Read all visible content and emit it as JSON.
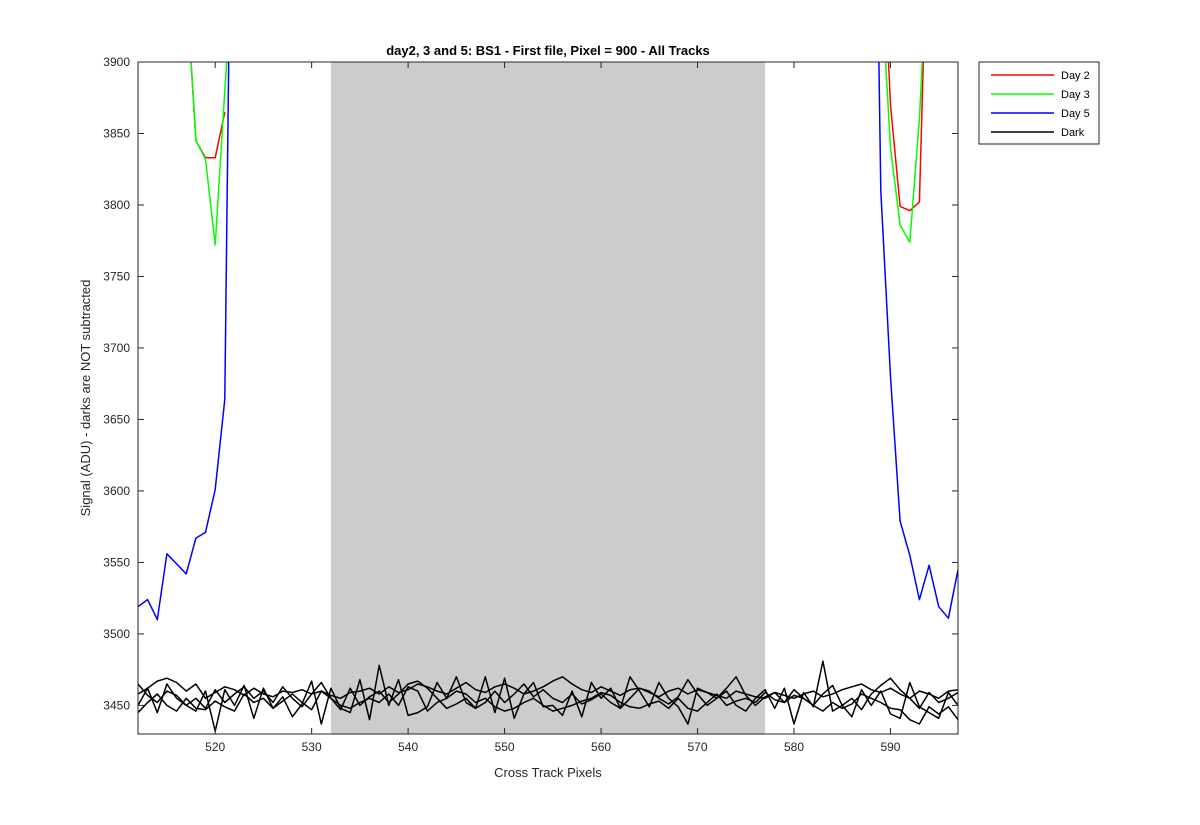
{
  "chart_data": {
    "type": "line",
    "title": "day2, 3 and 5: BS1 - First file, Pixel = 900 - All Tracks",
    "xlabel": "Cross Track Pixels",
    "ylabel": "Signal (ADU) - darks are NOT subtracted",
    "xlim": [
      512,
      597
    ],
    "ylim": [
      3430,
      3900
    ],
    "xticks": [
      520,
      530,
      540,
      550,
      560,
      570,
      580,
      590
    ],
    "yticks": [
      3450,
      3500,
      3550,
      3600,
      3650,
      3700,
      3750,
      3800,
      3850,
      3900
    ],
    "grid": false,
    "legend_position": "outside-top-right",
    "shaded_region": {
      "x_start": 532,
      "x_end": 577,
      "color": "#cccccc"
    },
    "series": [
      {
        "name": "Day 2",
        "color": "#ff0000",
        "segments": [
          {
            "x": [
              517.5,
              518,
              519,
              520,
              521
            ],
            "y": [
              3900,
              3845,
              3833,
              3833,
              3865
            ]
          },
          {
            "x": [
              589.8,
              590,
              591,
              592,
              593,
              593.4
            ],
            "y": [
              3900,
              3870,
              3799,
              3796,
              3802,
              3900
            ]
          }
        ]
      },
      {
        "name": "Day 3",
        "color": "#00ff00",
        "segments": [
          {
            "x": [
              517.5,
              518,
              519,
              520,
              521,
              521.2
            ],
            "y": [
              3900,
              3845,
              3832,
              3772,
              3880,
              3900
            ]
          },
          {
            "x": [
              589.5,
              590,
              591,
              592,
              593,
              593.3
            ],
            "y": [
              3900,
              3840,
              3786,
              3774,
              3860,
              3900
            ]
          }
        ]
      },
      {
        "name": "Day 5",
        "color": "#0000ff",
        "segments": [
          {
            "x": [
              512,
              513,
              514,
              515,
              516,
              517,
              518,
              519,
              520,
              521,
              521.4
            ],
            "y": [
              3519,
              3524,
              3510,
              3556,
              3549,
              3542,
              3567,
              3571,
              3601,
              3664,
              3900
            ]
          },
          {
            "x": [
              588.8,
              589,
              590,
              591,
              592,
              593,
              594,
              595,
              596,
              597
            ],
            "y": [
              3900,
              3810,
              3680,
              3579,
              3555,
              3524,
              3548,
              3519,
              3511,
              3545
            ]
          }
        ]
      },
      {
        "name": "Dark",
        "color": "#000000",
        "segments": [
          {
            "x": [
              512,
              513,
              514,
              515,
              516,
              517,
              518,
              519,
              520,
              521,
              522,
              523,
              524,
              525,
              526,
              527,
              528,
              529,
              530,
              531,
              532,
              533,
              534,
              535,
              536,
              537,
              538,
              539,
              540,
              541,
              542,
              543,
              544,
              545,
              546,
              547,
              548,
              549,
              550,
              551,
              552,
              553,
              554,
              555,
              556,
              557,
              558,
              559,
              560,
              561,
              562,
              563,
              564,
              565,
              566,
              567,
              568,
              569,
              570,
              571,
              572,
              573,
              574,
              575,
              576,
              577,
              578,
              579,
              580,
              581,
              582,
              583,
              584,
              585,
              586,
              587,
              588,
              589,
              590,
              591,
              592,
              593,
              594,
              595,
              596,
              597
            ],
            "y": [
              3458,
              3462,
              3467,
              3469,
              3466,
              3460,
              3465,
              3455,
              3459,
              3463,
              3461,
              3457,
              3462,
              3458,
              3456,
              3460,
              3459,
              3461,
              3458,
              3460,
              3457,
              3455,
              3459,
              3460,
              3462,
              3458,
              3463,
              3459,
              3461,
              3465,
              3463,
              3460,
              3458,
              3462,
              3466,
              3461,
              3459,
              3463,
              3465,
              3462,
              3458,
              3460,
              3463,
              3467,
              3470,
              3465,
              3461,
              3459,
              3463,
              3460,
              3457,
              3461,
              3462,
              3459,
              3456,
              3460,
              3462,
              3458,
              3461,
              3459,
              3457,
              3455,
              3460,
              3458,
              3456,
              3455,
              3459,
              3457,
              3455,
              3458,
              3460,
              3456,
              3458,
              3461,
              3463,
              3465,
              3461,
              3459,
              3462,
              3458,
              3455,
              3460,
              3458,
              3455,
              3460,
              3461
            ]
          },
          {
            "x": [
              512,
              513,
              514,
              515,
              516,
              517,
              518,
              519,
              520,
              521,
              522,
              523,
              524,
              525,
              526,
              527,
              528,
              529,
              530,
              531,
              532,
              533,
              534,
              535,
              536,
              537,
              538,
              539,
              540,
              541,
              542,
              543,
              544,
              545,
              546,
              547,
              548,
              549,
              550,
              551,
              552,
              553,
              554,
              555,
              556,
              557,
              558,
              559,
              560,
              561,
              562,
              563,
              564,
              565,
              566,
              567,
              568,
              569,
              570,
              571,
              572,
              573,
              574,
              575,
              576,
              577,
              578,
              579,
              580,
              581,
              582,
              583,
              584,
              585,
              586,
              587,
              588,
              589,
              590,
              591,
              592,
              593,
              594,
              595,
              596,
              597
            ],
            "y": [
              3465,
              3457,
              3452,
              3460,
              3457,
              3450,
              3455,
              3448,
              3461,
              3452,
              3458,
              3463,
              3455,
              3460,
              3452,
              3463,
              3455,
              3449,
              3458,
              3466,
              3455,
              3447,
              3462,
              3450,
              3456,
              3460,
              3452,
              3458,
              3465,
              3467,
              3462,
              3455,
              3448,
              3451,
              3455,
              3448,
              3452,
              3460,
              3452,
              3458,
              3465,
              3456,
              3461,
              3455,
              3452,
              3458,
              3451,
              3454,
              3458,
              3452,
              3448,
              3455,
              3462,
              3460,
              3455,
              3451,
              3456,
              3468,
              3458,
              3450,
              3455,
              3462,
              3470,
              3457,
              3450,
              3456,
              3459,
              3452,
              3461,
              3455,
              3450,
              3458,
              3464,
              3450,
              3455,
              3447,
              3458,
              3464,
              3469,
              3461,
              3455,
              3448,
              3459,
              3452,
              3455,
              3459
            ]
          },
          {
            "x": [
              512,
              513,
              514,
              515,
              516,
              517,
              518,
              519,
              520,
              521,
              522,
              523,
              524,
              525,
              526,
              527,
              528,
              529,
              530,
              531,
              532,
              533,
              534,
              535,
              536,
              537,
              538,
              539,
              540,
              541,
              542,
              543,
              544,
              545,
              546,
              547,
              548,
              549,
              550,
              551,
              552,
              553,
              554,
              555,
              556,
              557,
              558,
              559,
              560,
              561,
              562,
              563,
              564,
              565,
              566,
              567,
              568,
              569,
              570,
              571,
              572,
              573,
              574,
              575,
              576,
              577,
              578,
              579,
              580,
              581,
              582,
              583,
              584,
              585,
              586,
              587,
              588,
              589,
              590,
              591,
              592,
              593,
              594,
              595,
              596,
              597
            ],
            "y": [
              3450,
              3462,
              3445,
              3465,
              3455,
              3450,
              3446,
              3460,
              3432,
              3461,
              3450,
              3464,
              3441,
              3462,
              3448,
              3456,
              3442,
              3451,
              3467,
              3437,
              3462,
              3448,
              3445,
              3468,
              3440,
              3478,
              3450,
              3468,
              3443,
              3445,
              3449,
              3466,
              3455,
              3470,
              3452,
              3448,
              3470,
              3445,
              3469,
              3441,
              3458,
              3466,
              3449,
              3450,
              3443,
              3460,
              3442,
              3466,
              3455,
              3462,
              3448,
              3470,
              3460,
              3449,
              3466,
              3455,
              3449,
              3437,
              3462,
              3459,
              3455,
              3460,
              3450,
              3446,
              3455,
              3461,
              3448,
              3462,
              3437,
              3459,
              3449,
              3481,
              3446,
              3450,
              3442,
              3461,
              3450,
              3460,
              3444,
              3441,
              3466,
              3449,
              3445,
              3441,
              3459,
              3450
            ]
          },
          {
            "x": [
              512,
              513,
              514,
              515,
              516,
              517,
              518,
              519,
              520,
              521,
              522,
              523,
              524,
              525,
              526,
              527,
              528,
              529,
              530,
              531,
              532,
              533,
              534,
              535,
              536,
              537,
              538,
              539,
              540,
              541,
              542,
              543,
              544,
              545,
              546,
              547,
              548,
              549,
              550,
              551,
              552,
              553,
              554,
              555,
              556,
              557,
              558,
              559,
              560,
              561,
              562,
              563,
              564,
              565,
              566,
              567,
              568,
              569,
              570,
              571,
              572,
              573,
              574,
              575,
              576,
              577,
              578,
              579,
              580,
              581,
              582,
              583,
              584,
              585,
              586,
              587,
              588,
              589,
              590,
              591,
              592,
              593,
              594,
              595,
              596,
              597
            ],
            "y": [
              3445,
              3452,
              3458,
              3450,
              3446,
              3455,
              3448,
              3447,
              3453,
              3449,
              3446,
              3458,
              3452,
              3455,
              3448,
              3453,
              3458,
              3452,
              3447,
              3460,
              3455,
              3450,
              3448,
              3452,
              3455,
              3452,
              3458,
              3450,
              3463,
              3460,
              3446,
              3452,
              3455,
              3460,
              3458,
              3452,
              3455,
              3449,
              3446,
              3448,
              3452,
              3455,
              3450,
              3446,
              3448,
              3450,
              3453,
              3455,
              3459,
              3457,
              3452,
              3449,
              3448,
              3451,
              3453,
              3448,
              3455,
              3448,
              3446,
              3452,
              3458,
              3450,
              3453,
              3455,
              3452,
              3459,
              3454,
              3452,
              3457,
              3455,
              3450,
              3446,
              3452,
              3448,
              3451,
              3458,
              3455,
              3452,
              3448,
              3447,
              3440,
              3437,
              3449,
              3444,
              3449,
              3440
            ]
          }
        ]
      }
    ]
  }
}
